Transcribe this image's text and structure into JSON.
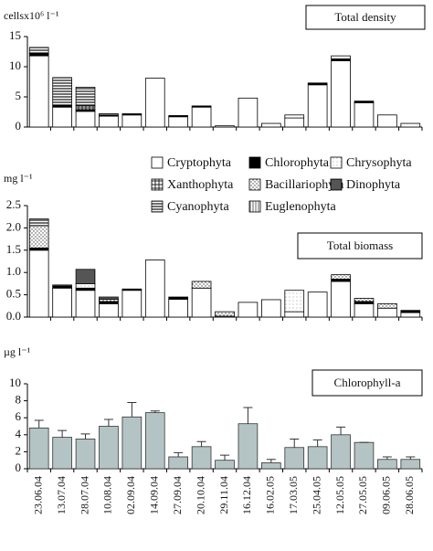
{
  "chart_data": [
    {
      "type": "stacked-bar",
      "title": "Total density",
      "y_label": "cellsx10⁶ l⁻¹",
      "ylim": [
        0,
        15
      ],
      "yticks": [
        0,
        5,
        10,
        15
      ],
      "series": [
        {
          "name": "Cryptophyta",
          "color": "#ffffff",
          "pattern": "solid",
          "values": [
            11.8,
            3.3,
            2.6,
            1.8,
            2.0,
            8.1,
            1.7,
            3.3,
            0.2,
            4.8,
            0.6,
            1.5,
            7.0,
            11.0,
            4.0,
            2.0,
            0.6
          ]
        },
        {
          "name": "Chlorophyta",
          "color": "#000000",
          "pattern": "solid",
          "values": [
            0.4,
            0.3,
            0.3,
            0.2,
            0.2,
            0,
            0.2,
            0.2,
            0,
            0,
            0,
            0,
            0.3,
            0.3,
            0.3,
            0,
            0
          ]
        },
        {
          "name": "Chrysophyta",
          "color": "#777777",
          "pattern": "fine",
          "values": [
            0,
            0,
            0,
            0,
            0,
            0,
            0,
            0,
            0,
            0,
            0,
            0.5,
            0,
            0.5,
            0,
            0,
            0
          ]
        },
        {
          "name": "Xanthophyta",
          "color": "#222222",
          "pattern": "grid",
          "values": [
            0,
            0,
            0.6,
            0,
            0,
            0,
            0,
            0,
            0,
            0,
            0,
            0,
            0,
            0,
            0,
            0,
            0
          ]
        },
        {
          "name": "Bacillariophyta",
          "color": "#444444",
          "pattern": "dots",
          "values": [
            0,
            0,
            0,
            0,
            0,
            0,
            0,
            0,
            0,
            0,
            0,
            0,
            0,
            0,
            0,
            0,
            0
          ]
        },
        {
          "name": "Dinophyta",
          "color": "#222222",
          "pattern": "dense",
          "values": [
            0,
            0,
            0,
            0,
            0,
            0,
            0,
            0,
            0,
            0,
            0,
            0,
            0,
            0,
            0,
            0,
            0
          ]
        },
        {
          "name": "Cyanophyta",
          "color": "#222222",
          "pattern": "hstripes",
          "values": [
            1.0,
            4.6,
            3.1,
            0.2,
            0,
            0,
            0,
            0,
            0,
            0,
            0,
            0,
            0,
            0,
            0,
            0,
            0
          ]
        },
        {
          "name": "Euglenophyta",
          "color": "#666666",
          "pattern": "vstripes",
          "values": [
            0,
            0,
            0,
            0,
            0,
            0,
            0,
            0,
            0,
            0,
            0,
            0,
            0,
            0,
            0,
            0,
            0
          ]
        }
      ]
    },
    {
      "type": "stacked-bar",
      "title": "Total biomass",
      "y_label": "mg l⁻¹",
      "ylim": [
        0,
        2.5
      ],
      "yticks": [
        {
          "value": 0,
          "label": "0.0"
        },
        0.5,
        {
          "value": 1,
          "label": "1.0"
        },
        1.5,
        {
          "value": 2,
          "label": "2.0"
        },
        2.5
      ],
      "series": [
        {
          "color": "#ffffff",
          "pattern": "solid",
          "values": [
            1.5,
            0.65,
            0.6,
            0.3,
            0.6,
            1.28,
            0.4,
            0.65,
            0.02,
            0.33,
            0.39,
            0.12,
            0.56,
            0.8,
            0.3,
            0.2,
            0.1
          ]
        },
        {
          "color": "#000000",
          "pattern": "solid",
          "values": [
            0.05,
            0.05,
            0.05,
            0.05,
            0.03,
            0,
            0.05,
            0,
            0,
            0,
            0,
            0,
            0,
            0.05,
            0.05,
            0,
            0.05
          ]
        },
        {
          "color": "#777777",
          "pattern": "fine",
          "values": [
            0,
            0,
            0.1,
            0,
            0,
            0,
            0,
            0,
            0,
            0,
            0,
            0.48,
            0,
            0,
            0,
            0,
            0
          ]
        },
        {
          "color": "#222222",
          "pattern": "grid",
          "values": [
            0,
            0,
            0,
            0,
            0,
            0,
            0,
            0,
            0,
            0,
            0,
            0,
            0,
            0,
            0,
            0,
            0
          ]
        },
        {
          "color": "#444444",
          "pattern": "dots",
          "values": [
            0.5,
            0.02,
            0,
            0.05,
            0,
            0,
            0,
            0.15,
            0.1,
            0,
            0,
            0,
            0,
            0.1,
            0.07,
            0.1,
            0
          ]
        },
        {
          "color": "#222222",
          "pattern": "dense",
          "values": [
            0,
            0,
            0.32,
            0.05,
            0,
            0,
            0,
            0,
            0,
            0,
            0,
            0,
            0,
            0,
            0,
            0,
            0
          ]
        },
        {
          "color": "#222222",
          "pattern": "hstripes",
          "values": [
            0.15,
            0,
            0,
            0,
            0,
            0,
            0,
            0,
            0,
            0,
            0,
            0,
            0,
            0,
            0,
            0,
            0
          ]
        },
        {
          "color": "#666666",
          "pattern": "vstripes",
          "values": [
            0,
            0,
            0,
            0,
            0,
            0,
            0,
            0,
            0,
            0,
            0,
            0,
            0,
            0,
            0,
            0,
            0
          ]
        }
      ]
    },
    {
      "type": "bar",
      "title": "Chlorophyll-a",
      "y_label": "µg l⁻¹",
      "ylim": [
        0,
        10
      ],
      "yticks": [
        0,
        2,
        4,
        6,
        8,
        10
      ],
      "color": "#b4c4c4",
      "categories": [
        "23.06.04",
        "13.07.04",
        "28.07.04",
        "10.08.04",
        "02.09.04",
        "14.09.04",
        "27.09.04",
        "20.10.04",
        "29.11.04",
        "16.12.04",
        "16.02.05",
        "17.03.05",
        "25.04.05",
        "12.05.05",
        "27.05.05",
        "09.06.05",
        "28.06.05"
      ],
      "values": [
        4.8,
        3.7,
        3.5,
        5.0,
        6.1,
        6.6,
        1.4,
        2.6,
        1.0,
        5.3,
        0.7,
        2.5,
        2.6,
        4.0,
        3.1,
        1.1,
        1.1
      ],
      "errors": [
        0.9,
        0.8,
        0.6,
        0.8,
        1.7,
        0.2,
        0.5,
        0.6,
        0.6,
        1.9,
        0.4,
        1.0,
        0.8,
        0.9,
        0,
        0.3,
        0.3
      ]
    }
  ]
}
